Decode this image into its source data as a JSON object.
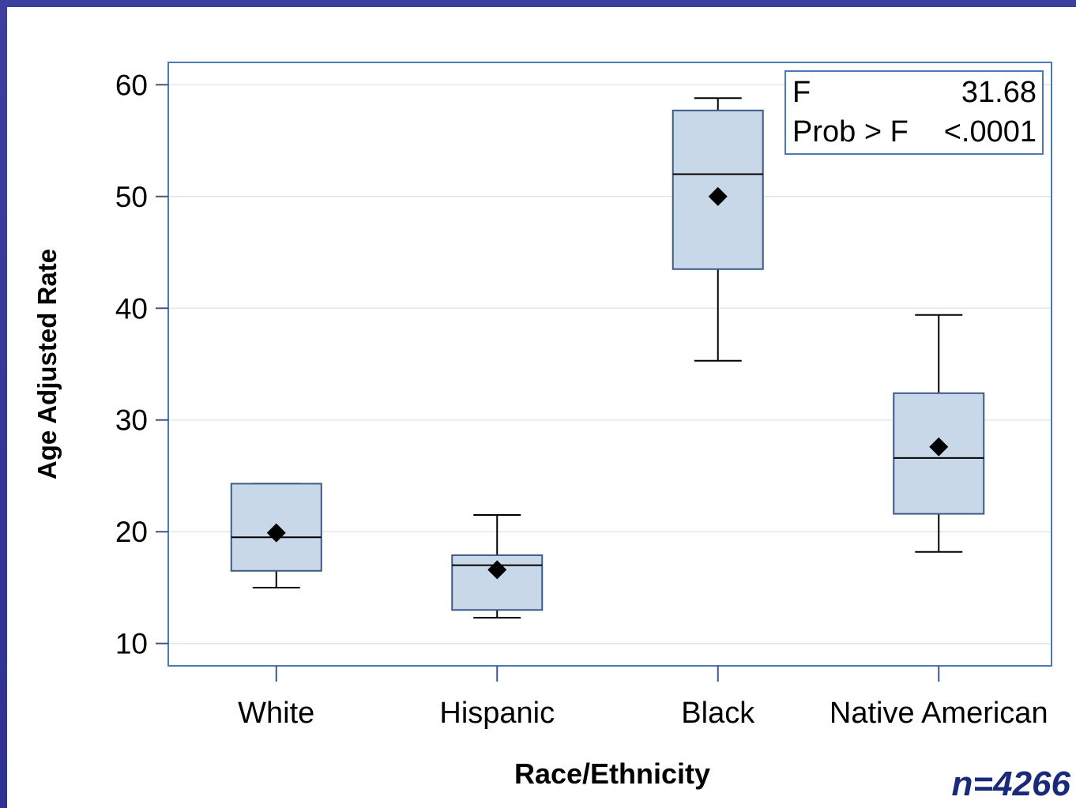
{
  "footnote": "n=4266",
  "colors": {
    "frame": "#2e3190",
    "box_fill": "#c9d8e8",
    "box_stroke": "#3a5a85",
    "axis_frame": "#4a7ab5",
    "grid": "#e6e6e6",
    "whisker": "#000000"
  },
  "chart_data": {
    "type": "box",
    "xlabel": "Race/Ethnicity",
    "ylabel": "Age Adjusted Rate",
    "ylim": [
      8,
      62
    ],
    "yticks": [
      10,
      20,
      30,
      40,
      50,
      60
    ],
    "grid": true,
    "categories": [
      "White",
      "Hispanic",
      "Black",
      "Native American"
    ],
    "boxes": [
      {
        "category": "White",
        "min": 15.0,
        "q1": 16.5,
        "median": 19.5,
        "q3": 24.3,
        "max": 24.3,
        "mean": 19.9
      },
      {
        "category": "Hispanic",
        "min": 12.3,
        "q1": 13.0,
        "median": 17.0,
        "q3": 17.9,
        "max": 21.5,
        "mean": 16.6
      },
      {
        "category": "Black",
        "min": 35.3,
        "q1": 43.5,
        "median": 52.0,
        "q3": 57.7,
        "max": 58.8,
        "mean": 50.0
      },
      {
        "category": "Native American",
        "min": 18.2,
        "q1": 21.6,
        "median": 26.6,
        "q3": 32.4,
        "max": 39.4,
        "mean": 27.6
      }
    ],
    "stats_inset": {
      "position": "top-right",
      "rows": [
        {
          "label": "F",
          "value": "31.68"
        },
        {
          "label": "Prob > F",
          "value": "<.0001"
        }
      ]
    }
  }
}
